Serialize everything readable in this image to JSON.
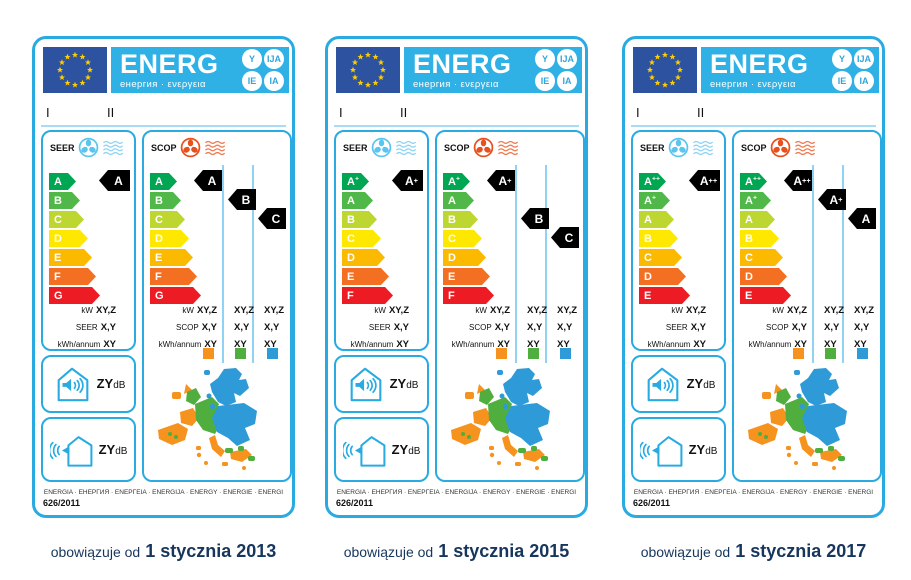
{
  "shared": {
    "header": {
      "energ": "ENERG",
      "subtitle": "енергия · ενεργεια",
      "circles": [
        "Y",
        "IJA",
        "IE",
        "IA"
      ]
    },
    "supplier_field": "I",
    "model_field": "II",
    "seer_title": "SEER",
    "scop_title": "SCOP",
    "data_rows": {
      "power_label": "kW",
      "seer_label": "SEER",
      "scop_label": "SCOP",
      "energy_label": "kWh/annum",
      "power_value": "XY,Z",
      "efficiency_value": "X,Y",
      "energy_value": "XY"
    },
    "noise": {
      "indoor_value": "ZY",
      "outdoor_value": "ZY",
      "unit": "dB"
    },
    "footer": {
      "languages": "ENERGIA · ЕНЕРГИЯ · ΕΝΕΡΓΕΙΑ · ENERGIJA · ENERGY · ENERGIE · ENERGI",
      "regulation": "626/2011"
    },
    "caption_prefix": "obowiązuje od"
  },
  "labels": [
    {
      "caption_date": "1 stycznia 2013",
      "scale": [
        "A",
        "B",
        "C",
        "D",
        "E",
        "F",
        "G"
      ],
      "seer_rating": "A",
      "scop_ratings": [
        "A",
        "B",
        "C"
      ]
    },
    {
      "caption_date": "1 stycznia 2015",
      "scale": [
        "A+",
        "A",
        "B",
        "C",
        "D",
        "E",
        "F"
      ],
      "seer_rating": "A+",
      "scop_ratings": [
        "A+",
        "B",
        "C"
      ]
    },
    {
      "caption_date": "1 stycznia 2017",
      "scale": [
        "A++",
        "A+",
        "A",
        "B",
        "C",
        "D",
        "E"
      ],
      "seer_rating": "A++",
      "scop_ratings": [
        "A++",
        "A+",
        "A"
      ]
    }
  ],
  "colors": {
    "label_border": "#29abe2",
    "header_band": "#2fb1e6",
    "eu_flag_blue": "#2d53a0",
    "eu_star_yellow": "#ffcc00",
    "arrow_scale": [
      "#00a651",
      "#50b848",
      "#bed630",
      "#ffe800",
      "#fbb900",
      "#f36f21",
      "#ed1c24"
    ],
    "rating_indicator": "#000000",
    "seer_fan": "#5bc5f2",
    "scop_fan": "#e8501d",
    "zone_warmer": "#f6921e",
    "zone_average": "#4fae3d",
    "zone_colder": "#2e9bd8",
    "caption_text": "#17365d"
  }
}
